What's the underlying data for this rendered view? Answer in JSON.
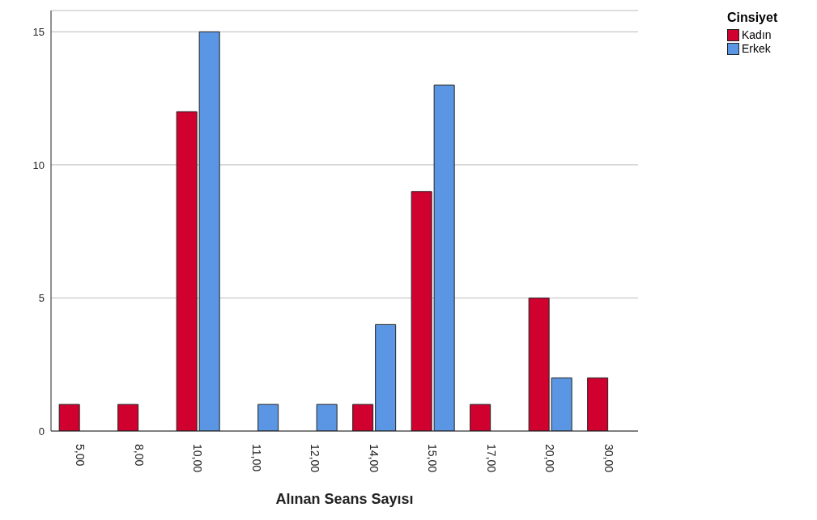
{
  "chart_data": {
    "type": "bar",
    "xlabel": "Alınan Seans Sayısı",
    "legend_title": "Cinsiyet",
    "categories": [
      "5,00",
      "8,00",
      "10,00",
      "11,00",
      "12,00",
      "14,00",
      "15,00",
      "17,00",
      "20,00",
      "30,00"
    ],
    "series": [
      {
        "name": "Kadın",
        "color": "#d0002f",
        "values": [
          1,
          1,
          12,
          null,
          null,
          1,
          9,
          1,
          5,
          2
        ]
      },
      {
        "name": "Erkek",
        "color": "#5a96e3",
        "values": [
          null,
          null,
          15,
          1,
          1,
          4,
          13,
          null,
          2,
          null
        ]
      }
    ],
    "ylim": [
      0,
      15.8
    ],
    "yticks": [
      0,
      5,
      10,
      15
    ],
    "grid": "y",
    "legend": "top right"
  }
}
